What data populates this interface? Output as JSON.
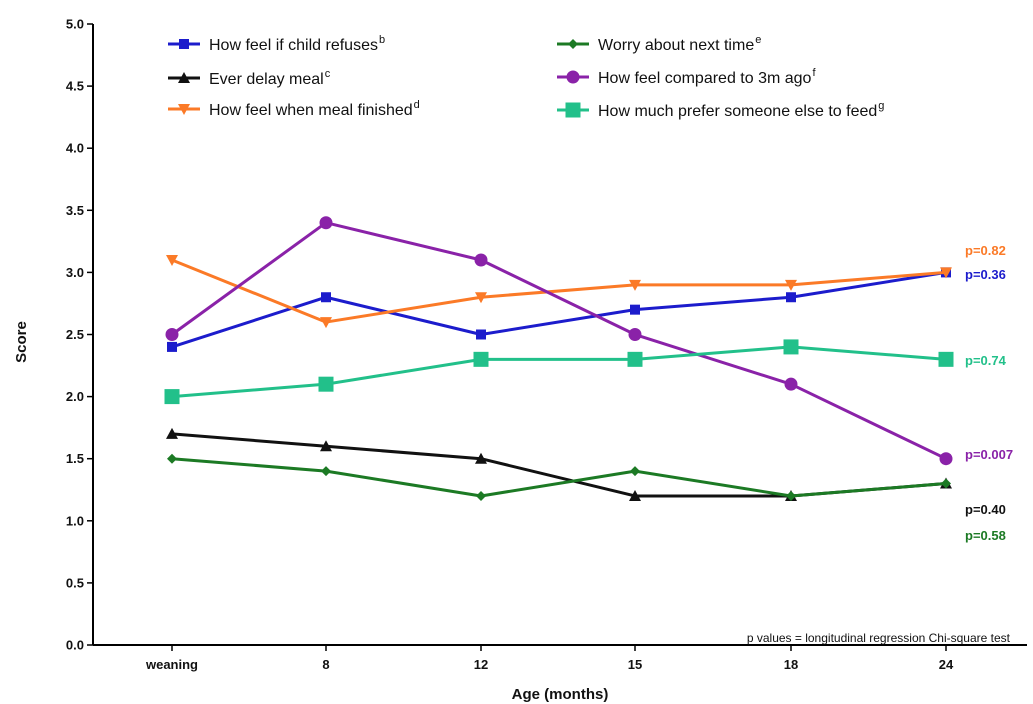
{
  "chart_data": {
    "type": "line",
    "xlabel": "Age (months)",
    "ylabel": "Score",
    "categories": [
      "weaning",
      "8",
      "12",
      "15",
      "18",
      "24"
    ],
    "ylim": [
      0,
      5
    ],
    "yticks": [
      "0.0",
      "0.5",
      "1.0",
      "1.5",
      "2.0",
      "2.5",
      "3.0",
      "3.5",
      "4.0",
      "4.5",
      "5.0"
    ],
    "grid": false,
    "legend_position": "top",
    "series": [
      {
        "name": "How feel if child refuses",
        "sup": "b",
        "color": "#1c1ccc",
        "marker": "square",
        "values": [
          2.4,
          2.8,
          2.5,
          2.7,
          2.8,
          3.0
        ],
        "pvalue": "p=0.36"
      },
      {
        "name": "Ever delay meal",
        "sup": "c",
        "color": "#111111",
        "marker": "triangle-up",
        "values": [
          1.7,
          1.6,
          1.5,
          1.2,
          1.2,
          1.3
        ],
        "pvalue": "p=0.40"
      },
      {
        "name": "How feel when meal finished",
        "sup": "d",
        "color": "#fb7a27",
        "marker": "triangle-down",
        "values": [
          3.1,
          2.6,
          2.8,
          2.9,
          2.9,
          3.0
        ],
        "pvalue": "p=0.82"
      },
      {
        "name": "Worry about next time",
        "sup": "e",
        "color": "#1c7a24",
        "marker": "diamond",
        "values": [
          1.5,
          1.4,
          1.2,
          1.4,
          1.2,
          1.3
        ],
        "pvalue": "p=0.58"
      },
      {
        "name": "How feel compared to 3m ago",
        "sup": "f",
        "color": "#8a22a8",
        "marker": "circle",
        "values": [
          2.5,
          3.4,
          3.1,
          2.5,
          2.1,
          1.5
        ],
        "pvalue": "p=0.007"
      },
      {
        "name": "How much prefer someone else to feed",
        "sup": "g",
        "color": "#22c08a",
        "marker": "big-square",
        "values": [
          2.0,
          2.1,
          2.3,
          2.3,
          2.4,
          2.3
        ],
        "pvalue": "p=0.74"
      }
    ],
    "annotation": "p values = longitudinal regression Chi-square test"
  }
}
